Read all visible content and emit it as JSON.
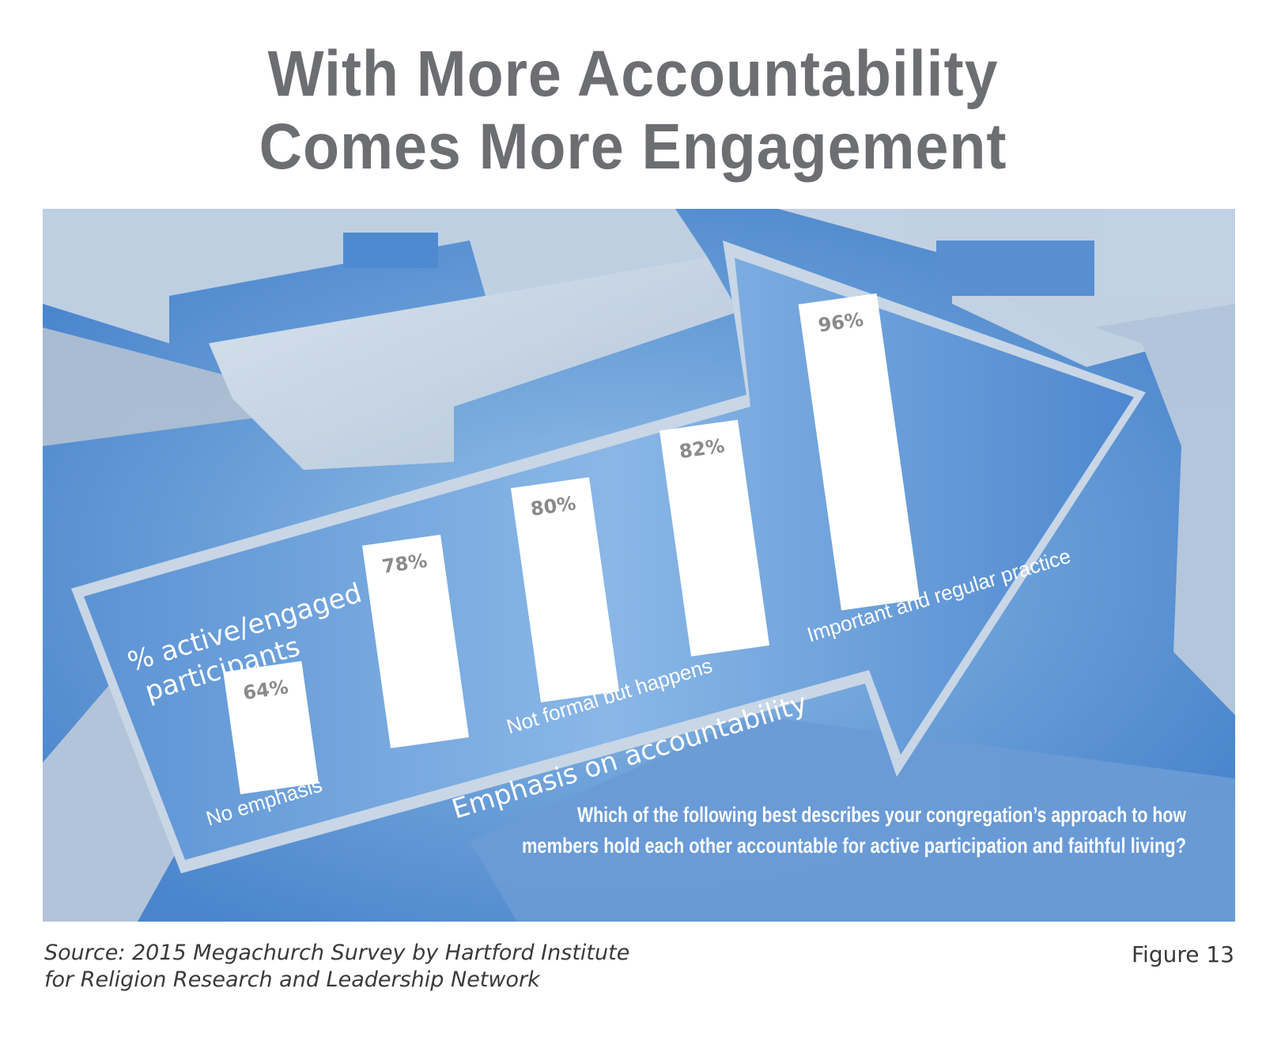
{
  "title": {
    "line1": "With More Accountability",
    "line2": "Comes More Engagement"
  },
  "chart_data": {
    "type": "bar",
    "ylabel_line1": "% active/engaged",
    "ylabel_line2": "participants",
    "xlabel": "Emphasis on accountability",
    "categories": [
      "No emphasis",
      "",
      "Not formal but happens",
      "",
      "Important and regular practice"
    ],
    "values": [
      64,
      78,
      80,
      82,
      96
    ],
    "value_labels": [
      "64%",
      "78%",
      "80%",
      "82%",
      "96%"
    ],
    "question_line1": "Which of the following best describes your congregation’s approach to how",
    "question_line2": "members hold each other accountable for active participation and faithful living?",
    "colors": {
      "background": "#4f8ad0",
      "bar": "#ffffff",
      "value_text": "#8a8a8a",
      "arrow": "#c9d6e4"
    }
  },
  "footer": {
    "source_line1": "Source: 2015 Megachurch Survey by Hartford Institute",
    "source_line2": "for Religion Research and Leadership Network",
    "figure": "Figure 13"
  }
}
